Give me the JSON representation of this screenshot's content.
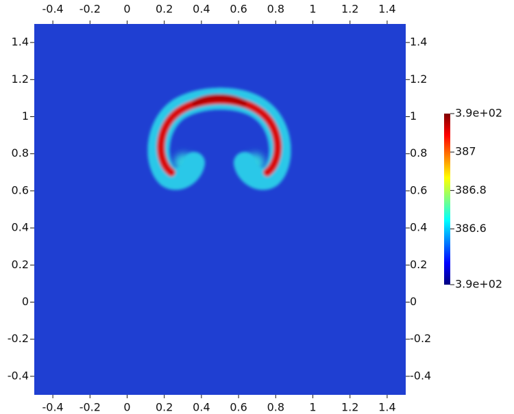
{
  "chart_data": {
    "type": "field",
    "xlim": [
      -0.5,
      1.5
    ],
    "ylim": [
      -0.5,
      1.5
    ],
    "xticks": [
      -0.4,
      -0.2,
      0,
      0.2,
      0.4,
      0.6,
      0.8,
      1,
      1.2,
      1.4
    ],
    "yticks": [
      -0.4,
      -0.2,
      0,
      0.2,
      0.4,
      0.6,
      0.8,
      1,
      1.2,
      1.4
    ],
    "colorbar": {
      "lim": [
        386.31,
        387.2
      ],
      "ticks": [
        {
          "value": 387.2,
          "label": "3.9e+02"
        },
        387,
        386.8,
        386.6,
        {
          "value": 386.31,
          "label": "3.9e+02"
        }
      ],
      "colormap": [
        "#000080",
        "#0000ff",
        "#0080ff",
        "#00ffff",
        "#80ff80",
        "#ffff00",
        "#ff8000",
        "#ff0000",
        "#800000"
      ]
    },
    "background_color": "#1f3fd2"
  }
}
